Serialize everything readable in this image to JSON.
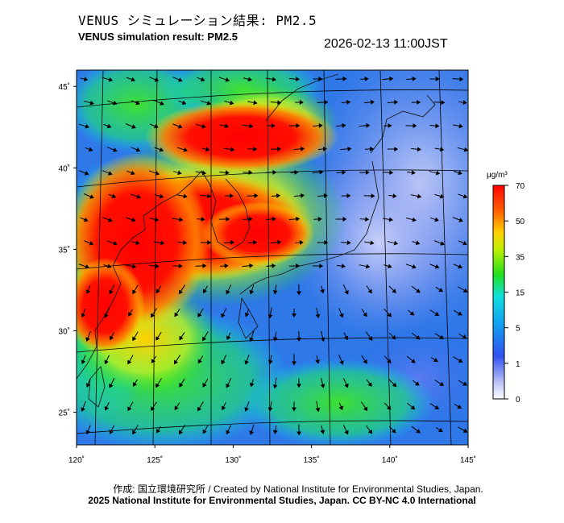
{
  "title_jp": "VENUS シミュレーション結果: PM2.5",
  "title_en": "VENUS simulation result: PM2.5",
  "timestamp": "2026-02-13 11:00JST",
  "map": {
    "lon_range": [
      120,
      145
    ],
    "lat_range": [
      23,
      46
    ],
    "lon_ticks": [
      {
        "value": 120,
        "label": "120˚"
      },
      {
        "value": 125,
        "label": "125˚"
      },
      {
        "value": 130,
        "label": "130˚"
      },
      {
        "value": 135,
        "label": "135˚"
      },
      {
        "value": 140,
        "label": "140˚"
      },
      {
        "value": 145,
        "label": "145˚"
      }
    ],
    "lat_ticks": [
      {
        "value": 45,
        "label": "45˚"
      },
      {
        "value": 40,
        "label": "40˚"
      },
      {
        "value": 35,
        "label": "35˚"
      },
      {
        "value": 30,
        "label": "30˚"
      },
      {
        "value": 25,
        "label": "25˚"
      }
    ]
  },
  "colorbar": {
    "unit": "μg/m³",
    "ticks": [
      {
        "value": 70,
        "label": "70"
      },
      {
        "value": 50,
        "label": "50"
      },
      {
        "value": 35,
        "label": "35"
      },
      {
        "value": 15,
        "label": "15"
      },
      {
        "value": 5,
        "label": "5"
      },
      {
        "value": 1,
        "label": "1"
      },
      {
        "value": 0,
        "label": "0"
      }
    ],
    "colors": [
      "#ffffff",
      "#3050f0",
      "#10d0f0",
      "#20e020",
      "#f0f000",
      "#ff8000",
      "#ff0000"
    ]
  },
  "credit_line1": "作成: 国立環境研究所 / Created by National Institute for Environmental Studies, Japan.",
  "credit_line2": "2025 National Institute for Environmental Studies, Japan. CC BY-NC 4.0 International"
}
